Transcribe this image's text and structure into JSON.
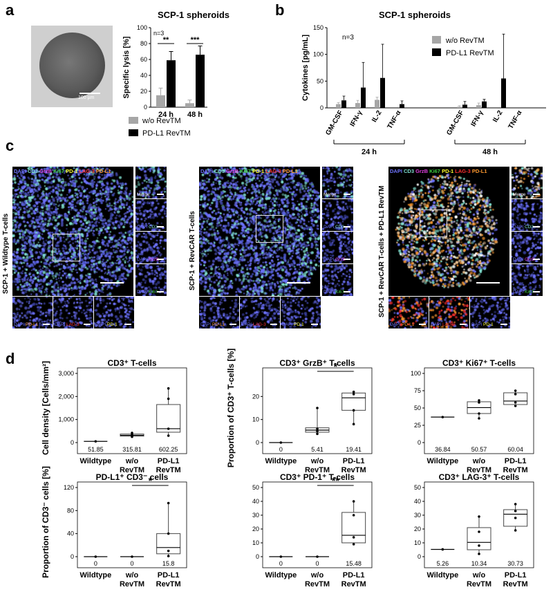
{
  "panels": {
    "a": "a",
    "b": "b",
    "c": "c",
    "d": "d"
  },
  "colors": {
    "grey": "#a6a6a6",
    "black": "#000000",
    "dapi": "#6f74ff",
    "cd3": "#7fe0d0",
    "grzb": "#e040e0",
    "ki67": "#40d040",
    "pd1": "#ffff30",
    "lag3": "#ff3030",
    "pdl1": "#ff9a30"
  },
  "a": {
    "image_scale_label": "100 µm",
    "chart_data": {
      "type": "bar",
      "title": "SCP-1 spheroids",
      "ylabel": "Specific lysis [%]",
      "n_label": "n=3",
      "categories": [
        "24 h",
        "48 h"
      ],
      "ylim": [
        0,
        100
      ],
      "yticks": [
        0,
        20,
        40,
        60,
        80,
        100
      ],
      "series": [
        {
          "name": "w/o RevTM",
          "color": "#a6a6a6",
          "values": [
            15,
            5
          ],
          "errors": [
            9,
            4
          ]
        },
        {
          "name": "PD-L1 RevTM",
          "color": "#000000",
          "values": [
            59,
            66
          ],
          "errors": [
            11,
            11
          ]
        }
      ],
      "significance": [
        "**",
        "***"
      ]
    }
  },
  "b": {
    "chart_data": {
      "type": "bar",
      "title": "SCP-1 spheroids",
      "ylabel": "Cytokines [pg/mL]",
      "n_label": "n=3",
      "ylim": [
        0,
        150
      ],
      "yticks": [
        0,
        50,
        100,
        150
      ],
      "groups": [
        "24 h",
        "48 h"
      ],
      "categories": [
        "GM-CSF",
        "IFN-γ",
        "IL-2",
        "TNF-α"
      ],
      "series": [
        {
          "name": "w/o RevTM",
          "color": "#a6a6a6",
          "values": [
            [
              7,
              9,
              15,
              0
            ],
            [
              2,
              5,
              0,
              0
            ]
          ],
          "errors": [
            [
              3,
              5,
              5,
              0
            ],
            [
              2,
              4,
              0,
              0
            ]
          ]
        },
        {
          "name": "PD-L1 RevTM",
          "color": "#000000",
          "values": [
            [
              14,
              38,
              56,
              7
            ],
            [
              6,
              12,
              55,
              0
            ]
          ],
          "errors": [
            [
              8,
              47,
              63,
              6
            ],
            [
              6,
              4,
              83,
              0
            ]
          ]
        }
      ]
    }
  },
  "c": {
    "side_labels": [
      "SCP-1 + Wildtype T-cells",
      "SCP-1 + RevCAR T-cells",
      "SCP-1 + RevCAR T-cells + PD-L1 RevTM"
    ],
    "channel_header": [
      {
        "text": "DAPI",
        "color": "#6f74ff"
      },
      {
        "text": "CD3",
        "color": "#7fe0d0"
      },
      {
        "text": "GrzB",
        "color": "#e040e0"
      },
      {
        "text": "Ki67",
        "color": "#40d040"
      },
      {
        "text": "PD-1",
        "color": "#ffff30"
      },
      {
        "text": "LAG-3",
        "color": "#ff3030"
      },
      {
        "text": "PD-L1",
        "color": "#ff9a30"
      }
    ],
    "side_tiles": [
      {
        "a": "Merge",
        "b": ""
      },
      {
        "a": "DAPI",
        "b": "CD3"
      },
      {
        "a": "DAPI",
        "b": "GrzB"
      },
      {
        "a": "DAPI",
        "b": "Ki67"
      }
    ],
    "bottom_tiles": [
      {
        "a": "DAPI",
        "b": "PD-L1"
      },
      {
        "a": "DAPI",
        "b": "LAG-3"
      },
      {
        "a": "DAPI",
        "b": "PD-1"
      }
    ]
  },
  "d": {
    "chart_data": [
      {
        "type": "box",
        "title": "CD3⁺ T-cells",
        "ylabel": "Cell density [Cells/mm²]",
        "ylim": [
          0,
          3000
        ],
        "yticks": [
          0,
          1000,
          2000,
          3000
        ],
        "ytick_labels": [
          "0",
          "1,000",
          "2,000",
          "3,000"
        ],
        "categories": [
          "Wildtype",
          "w/o RevTM",
          "PD-L1 RevTM"
        ],
        "medians_label": [
          "51.85",
          "315.81",
          "602.25"
        ],
        "boxes": [
          {
            "q1": 51.85,
            "med": 51.85,
            "q3": 51.85,
            "lo": 51.85,
            "hi": 51.85,
            "pts": [
              51.85
            ]
          },
          {
            "q1": 280,
            "med": 315.81,
            "q3": 370,
            "lo": 250,
            "hi": 420,
            "pts": [
              250,
              300,
              340,
              420
            ]
          },
          {
            "q1": 450,
            "med": 602.25,
            "q3": 1650,
            "lo": 300,
            "hi": 2350,
            "pts": [
              300,
              600,
              1900,
              2350
            ]
          }
        ],
        "sig": null
      },
      {
        "type": "box",
        "title": "CD3⁺ GrzB⁺ T-cells",
        "ylabel": "Proportion of CD3⁺ T-cells [%]",
        "ylim": [
          0,
          30
        ],
        "yticks": [
          0,
          10,
          20
        ],
        "ytick_labels": [
          "0",
          "10",
          "20"
        ],
        "categories": [
          "Wildtype",
          "w/o RevTM",
          "PD-L1 RevTM"
        ],
        "medians_label": [
          "0",
          "5.41",
          "19.41"
        ],
        "boxes": [
          {
            "q1": 0,
            "med": 0,
            "q3": 0,
            "lo": 0,
            "hi": 0,
            "pts": [
              0
            ]
          },
          {
            "q1": 4.5,
            "med": 5.41,
            "q3": 6.4,
            "lo": 3.8,
            "hi": 15,
            "pts": [
              3.8,
              5,
              6,
              15
            ]
          },
          {
            "q1": 14,
            "med": 19.41,
            "q3": 21.5,
            "lo": 8,
            "hi": 22,
            "pts": [
              8,
              14,
              21,
              22
            ]
          }
        ],
        "sig": "*"
      },
      {
        "type": "box",
        "title": "CD3⁺ Ki67⁺ T-cells",
        "ylabel": "",
        "ylim": [
          0,
          100
        ],
        "yticks": [
          0,
          25,
          50,
          75,
          100
        ],
        "ytick_labels": [
          "0",
          "25",
          "50",
          "75",
          "100"
        ],
        "categories": [
          "Wildtype",
          "w/o RevTM",
          "PD-L1 RevTM"
        ],
        "medians_label": [
          "36.84",
          "50.57",
          "60.04"
        ],
        "boxes": [
          {
            "q1": 36.84,
            "med": 36.84,
            "q3": 36.84,
            "lo": 36.84,
            "hi": 36.84,
            "pts": [
              36.84
            ]
          },
          {
            "q1": 42,
            "med": 50.57,
            "q3": 59,
            "lo": 35,
            "hi": 61,
            "pts": [
              35,
              42,
              58,
              61
            ]
          },
          {
            "q1": 55,
            "med": 60.04,
            "q3": 72,
            "lo": 53,
            "hi": 75,
            "pts": [
              53,
              58,
              70,
              75
            ]
          }
        ],
        "sig": null
      },
      {
        "type": "box",
        "title": "PD-L1⁺ CD3⁻ cells",
        "ylabel": "Proportion of CD3⁻ cells [%]",
        "ylim": [
          0,
          120
        ],
        "yticks": [
          0,
          40,
          80,
          120
        ],
        "ytick_labels": [
          "0",
          "40",
          "80",
          "120"
        ],
        "categories": [
          "Wildtype",
          "w/o RevTM",
          "PD-L1 RevTM"
        ],
        "medians_label": [
          "0",
          "0",
          "15.8"
        ],
        "boxes": [
          {
            "q1": 0,
            "med": 0,
            "q3": 0,
            "lo": 0,
            "hi": 0,
            "pts": [
              0
            ]
          },
          {
            "q1": 0,
            "med": 0,
            "q3": 0,
            "lo": 0,
            "hi": 0,
            "pts": [
              0
            ]
          },
          {
            "q1": 5,
            "med": 15.8,
            "q3": 40,
            "lo": 1,
            "hi": 93,
            "pts": [
              1,
              10,
              40,
              93
            ]
          }
        ],
        "sig": "*"
      },
      {
        "type": "box",
        "title": "CD3⁺ PD-1⁺ T-cells",
        "ylabel": "",
        "ylim": [
          0,
          50
        ],
        "yticks": [
          0,
          10,
          20,
          30,
          40,
          50
        ],
        "ytick_labels": [
          "0",
          "10",
          "20",
          "30",
          "40",
          "50"
        ],
        "categories": [
          "Wildtype",
          "w/o RevTM",
          "PD-L1 RevTM"
        ],
        "medians_label": [
          "0",
          "0",
          "15.48"
        ],
        "boxes": [
          {
            "q1": 0,
            "med": 0,
            "q3": 0,
            "lo": 0,
            "hi": 0,
            "pts": [
              0
            ]
          },
          {
            "q1": 0,
            "med": 0,
            "q3": 0,
            "lo": 0,
            "hi": 0,
            "pts": [
              0
            ]
          },
          {
            "q1": 10,
            "med": 15.48,
            "q3": 32,
            "lo": 9,
            "hi": 40,
            "pts": [
              9,
              14,
              30,
              40
            ]
          }
        ],
        "sig": "**"
      },
      {
        "type": "box",
        "title": "CD3⁺ LAG-3⁺ T-cells",
        "ylabel": "",
        "ylim": [
          0,
          50
        ],
        "yticks": [
          0,
          10,
          20,
          30,
          40,
          50
        ],
        "ytick_labels": [
          "0",
          "10",
          "20",
          "30",
          "40",
          "50"
        ],
        "categories": [
          "Wildtype",
          "w/o RevTM",
          "PD-L1 RevTM"
        ],
        "medians_label": [
          "5.26",
          "10.34",
          "30.73"
        ],
        "boxes": [
          {
            "q1": 5.26,
            "med": 5.26,
            "q3": 5.26,
            "lo": 5.26,
            "hi": 5.26,
            "pts": [
              5.26
            ]
          },
          {
            "q1": 5,
            "med": 10.34,
            "q3": 21,
            "lo": 2,
            "hi": 29,
            "pts": [
              2,
              8,
              18,
              29
            ]
          },
          {
            "q1": 22,
            "med": 30.73,
            "q3": 34,
            "lo": 19,
            "hi": 38,
            "pts": [
              19,
              28,
              33,
              38
            ]
          }
        ],
        "sig": null
      }
    ]
  }
}
